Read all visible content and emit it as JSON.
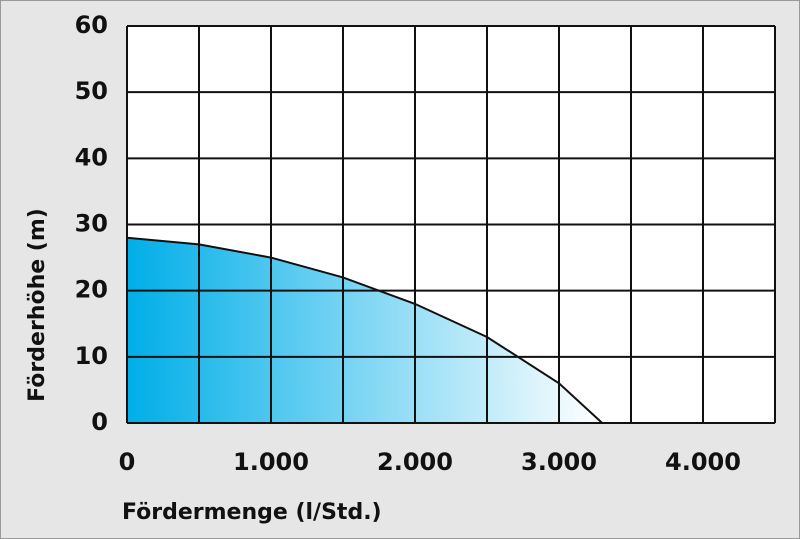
{
  "chart_data": {
    "type": "area",
    "x_label": "Fördermenge (l/Std.)",
    "y_label": "Förderhöhe (m)",
    "x": [
      0,
      500,
      1000,
      1500,
      2000,
      2500,
      3000,
      3300
    ],
    "values": [
      28,
      27,
      25,
      22,
      18,
      13,
      6,
      0
    ],
    "color": "#00aee8",
    "xlim": [
      0,
      4500
    ],
    "ylim": [
      0,
      60
    ],
    "xticks": [
      0,
      {
        "value": 1000,
        "label": "1.000"
      },
      {
        "value": 2000,
        "label": "2.000"
      },
      {
        "value": 3000,
        "label": "3.000"
      },
      {
        "value": 4000,
        "label": "4.000"
      }
    ],
    "xgrid": [
      0,
      500,
      1000,
      1500,
      2000,
      2500,
      3000,
      3500,
      4000,
      4500
    ],
    "yticks": [
      0,
      10,
      20,
      30,
      40,
      50,
      60
    ],
    "grid": true
  }
}
